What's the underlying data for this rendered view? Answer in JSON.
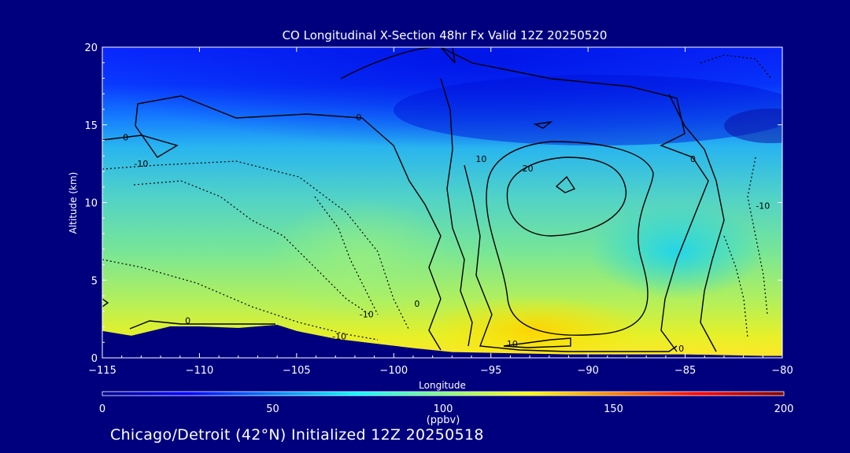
{
  "chart_data": {
    "type": "heatmap",
    "title": "CO Longitudinal X-Section 48hr  Fx Valid 12Z 20250520",
    "xlabel": "Longitude",
    "ylabel": "Altitude (km)",
    "xlim": [
      -115,
      -80
    ],
    "ylim": [
      0,
      20
    ],
    "x_ticks": [
      -115,
      -110,
      -105,
      -100,
      -95,
      -90,
      -85,
      -80
    ],
    "y_ticks": [
      0,
      5,
      10,
      15,
      20
    ],
    "colorbar": {
      "label": "(ppbv)",
      "range": [
        0,
        200
      ],
      "ticks": [
        0,
        50,
        100,
        150,
        200
      ],
      "colormap": [
        "#00008f",
        "#0000ff",
        "#0080ff",
        "#00ffff",
        "#80ff80",
        "#ffff00",
        "#ff8000",
        "#ff0000",
        "#800000"
      ]
    },
    "contour_labels": [
      {
        "text": "0",
        "x": -110.6,
        "y": 2.2
      },
      {
        "text": "0",
        "x": -98.8,
        "y": 3.3
      },
      {
        "text": "0",
        "x": -85.2,
        "y": 0.4
      },
      {
        "text": "0",
        "x": -113.8,
        "y": 14.0
      },
      {
        "text": "0",
        "x": -101.8,
        "y": 15.3
      },
      {
        "text": "0",
        "x": -84.6,
        "y": 12.6
      },
      {
        "text": "10",
        "x": -95.5,
        "y": 12.6
      },
      {
        "text": "10",
        "x": -93.9,
        "y": 0.7
      },
      {
        "text": "20",
        "x": -93.1,
        "y": 12.0
      },
      {
        "text": "-10",
        "x": -113.0,
        "y": 12.3
      },
      {
        "text": "-10",
        "x": -101.4,
        "y": 2.6
      },
      {
        "text": "-10",
        "x": -102.8,
        "y": 1.2
      },
      {
        "text": "-10",
        "x": -81.0,
        "y": 9.6
      }
    ],
    "terrain_km": [
      [
        -115,
        1.7
      ],
      [
        -113.5,
        1.4
      ],
      [
        -111.5,
        2.0
      ],
      [
        -110,
        2.0
      ],
      [
        -108,
        1.9
      ],
      [
        -106,
        2.1
      ],
      [
        -105,
        1.7
      ],
      [
        -103,
        1.2
      ],
      [
        -101,
        0.9
      ],
      [
        -99,
        0.6
      ],
      [
        -97,
        0.35
      ],
      [
        -95,
        0.3
      ],
      [
        -93,
        0.25
      ],
      [
        -91,
        0.2
      ],
      [
        -89,
        0.2
      ],
      [
        -87,
        0.2
      ],
      [
        -85,
        0.2
      ],
      [
        -83,
        0.15
      ],
      [
        -81,
        0.1
      ],
      [
        -80,
        0.1
      ]
    ]
  },
  "footer": "Chicago/Detroit (42°N) Initialized 12Z 20250518"
}
